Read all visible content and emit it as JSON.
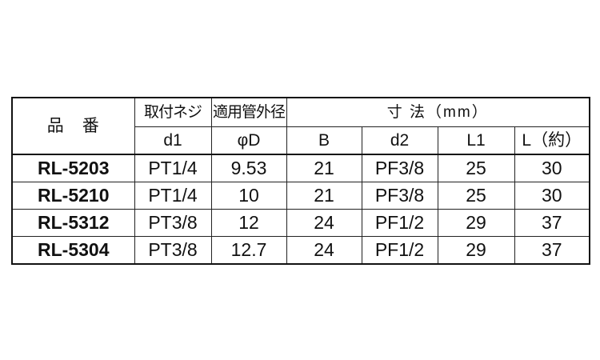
{
  "header": {
    "part_no": "品　番",
    "mount_thread": "取付ネジ",
    "pipe_od": "適用管外径",
    "dimensions": "寸 法（mm）",
    "columns": [
      "d1",
      "φD",
      "B",
      "d2",
      "L1",
      "L（約）"
    ]
  },
  "rows": [
    {
      "part": "RL-5203",
      "d1": "PT1/4",
      "D": "9.53",
      "B": "21",
      "d2": "PF3/8",
      "L1": "25",
      "L": "30"
    },
    {
      "part": "RL-5210",
      "d1": "PT1/4",
      "D": "10",
      "B": "21",
      "d2": "PF3/8",
      "L1": "25",
      "L": "30"
    },
    {
      "part": "RL-5312",
      "d1": "PT3/8",
      "D": "12",
      "B": "24",
      "d2": "PF1/2",
      "L1": "29",
      "L": "37"
    },
    {
      "part": "RL-5304",
      "d1": "PT3/8",
      "D": "12.7",
      "B": "24",
      "d2": "PF1/2",
      "L1": "29",
      "L": "37"
    }
  ]
}
